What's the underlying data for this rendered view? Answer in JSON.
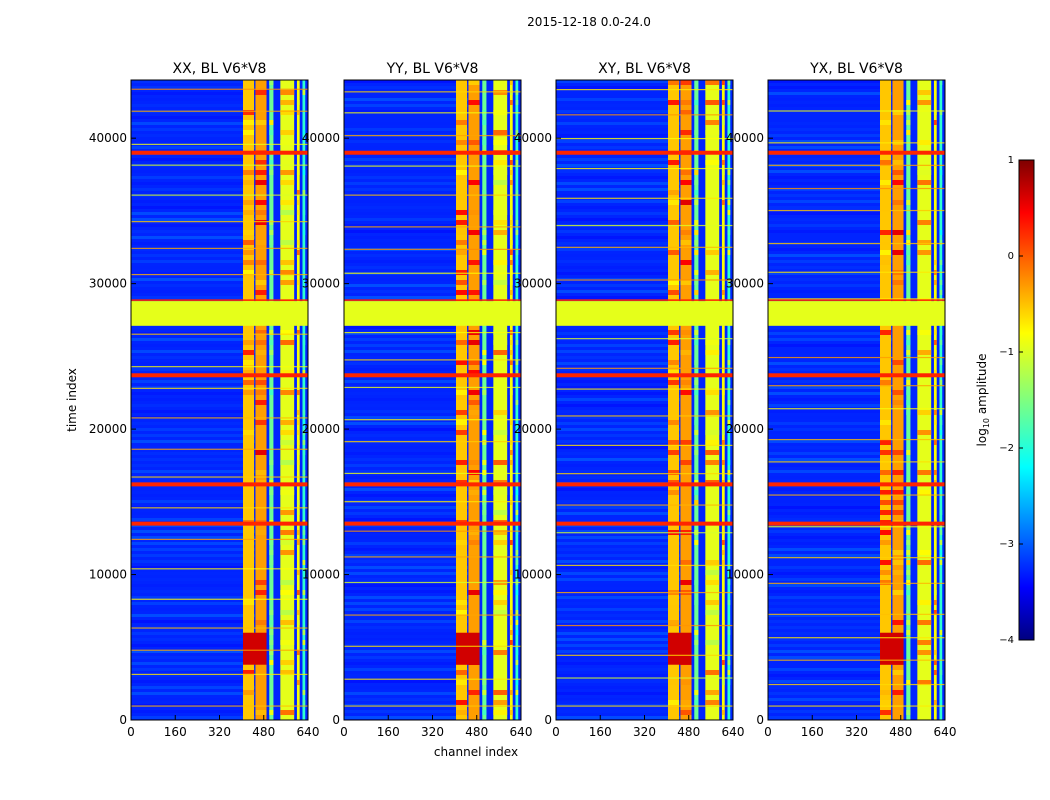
{
  "figure": {
    "suptitle": "2015-12-18 0.0-24.0"
  },
  "chart_data": {
    "type": "heatmap",
    "title": "2015-12-18 0.0-24.0",
    "colormap": "jet",
    "xlabel": "channel index",
    "ylabel": "time index",
    "xlim": [
      0,
      640
    ],
    "ylim": [
      0,
      44000
    ],
    "x_ticks": [
      "0",
      "160",
      "320",
      "480",
      "640"
    ],
    "y_ticks": [
      "0",
      "10000",
      "20000",
      "30000",
      "40000"
    ],
    "x_tick_values": [
      0,
      160,
      320,
      480,
      640
    ],
    "y_tick_values": [
      0,
      10000,
      20000,
      30000,
      40000
    ],
    "panels": [
      {
        "title": "XX, BL V6*V8",
        "polarization": "XX"
      },
      {
        "title": "YY, BL V6*V8",
        "polarization": "YY"
      },
      {
        "title": "XY, BL V6*V8",
        "polarization": "XY"
      },
      {
        "title": "YX, BL V6*V8",
        "polarization": "YX"
      }
    ],
    "colorbar": {
      "label": "log10 amplitude",
      "label_main": "log",
      "label_sub": "10",
      "label_tail": " amplitude",
      "range": [
        -4,
        1
      ],
      "ticks": [
        "1",
        "0",
        "−1",
        "−2",
        "−3",
        "−4"
      ],
      "tick_values": [
        1,
        0,
        -1,
        -2,
        -3,
        -4
      ]
    },
    "features": {
      "flagged_time_band": [
        27100,
        28800
      ],
      "flagged_time_lines": [
        16200,
        13500,
        23700,
        39000
      ],
      "bright_channel_bands": [
        [
          405,
          445
        ],
        [
          450,
          490
        ],
        [
          500,
          515
        ],
        [
          540,
          590
        ],
        [
          600,
          610
        ],
        [
          620,
          630
        ]
      ],
      "background_log_amplitude": -3.2,
      "flagged_value": -1.0
    }
  }
}
